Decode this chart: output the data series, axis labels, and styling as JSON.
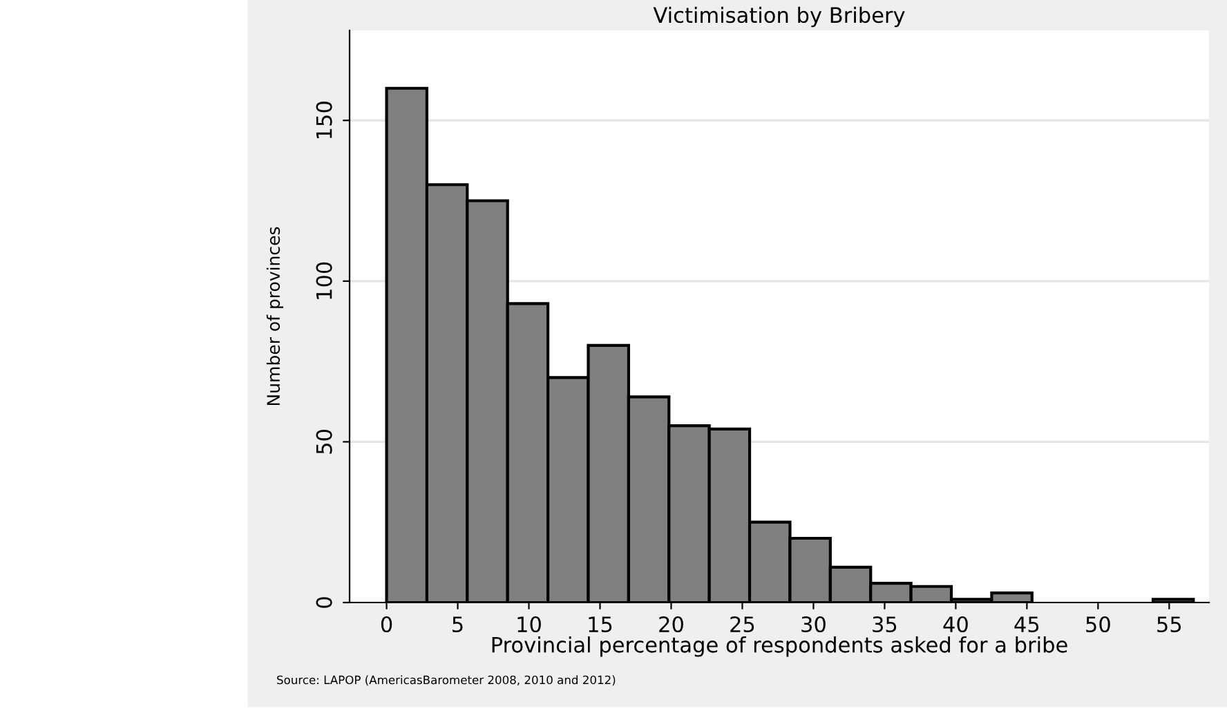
{
  "chart_data": {
    "type": "histogram",
    "title": "Victimisation by Bribery",
    "xlabel": "Provincial percentage of respondents asked for a bribe",
    "ylabel": "Number of provinces",
    "annotations": [
      "Source: LAPOP (AmericasBarometer 2008, 2010 and 2012)"
    ],
    "bins": [
      0,
      2.835,
      5.67,
      8.505,
      11.34,
      14.175,
      17.01,
      19.845,
      22.68,
      25.515,
      28.35,
      31.185,
      34.02,
      36.855,
      39.69,
      42.525,
      45.36,
      48.195,
      51.03,
      53.865,
      56.7
    ],
    "values": [
      160,
      130,
      125,
      93,
      70,
      80,
      64,
      55,
      54,
      25,
      20,
      11,
      6,
      5,
      1,
      3,
      0,
      0,
      0,
      1
    ],
    "color": "#808080",
    "xlim": [
      -2.6,
      57.8
    ],
    "ylim": [
      0,
      178
    ],
    "xticks": [
      0,
      5,
      10,
      15,
      20,
      25,
      30,
      35,
      40,
      45,
      50,
      55
    ],
    "yticks": [
      0,
      50,
      100,
      150
    ],
    "grid": "y"
  }
}
